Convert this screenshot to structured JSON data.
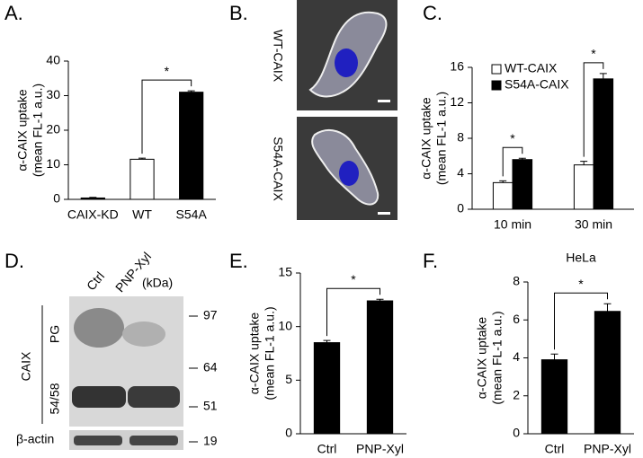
{
  "chart_data": [
    {
      "type": "bar",
      "label": "A.",
      "categories": [
        "CAIX-KD",
        "WT",
        "S54A"
      ],
      "values": [
        0.4,
        11.6,
        31
      ],
      "errors": [
        0.2,
        0.3,
        0.4
      ],
      "colors": [
        "#000000",
        "#ffffff",
        "#000000"
      ],
      "ylabel": [
        "α-CAIX uptake",
        "(mean FL-1 a.u.)"
      ],
      "ylim": [
        0,
        40
      ],
      "yticks": [
        0,
        10,
        20,
        30,
        40
      ],
      "annotations": [
        "*"
      ]
    },
    {
      "type": "grouped-bar",
      "label": "C.",
      "categories": [
        "10 min",
        "30 min"
      ],
      "series": [
        {
          "name": "WT-CAIX",
          "color": "#ffffff",
          "values": [
            3.0,
            5.0
          ],
          "errors": [
            0.2,
            0.4
          ]
        },
        {
          "name": "S54A-CAIX",
          "color": "#000000",
          "values": [
            5.6,
            14.7
          ],
          "errors": [
            0.15,
            0.6
          ]
        }
      ],
      "ylabel": [
        "α-CAIX uptake",
        "(mean FL-1 a.u.)"
      ],
      "ylim": [
        0,
        16
      ],
      "yticks": [
        0,
        4,
        8,
        12,
        16
      ],
      "legend": "upper left",
      "annotations": [
        "*",
        "*"
      ]
    },
    {
      "type": "bar",
      "label": "E.",
      "categories": [
        "Ctrl",
        "PNP-Xyl"
      ],
      "values": [
        8.5,
        12.4
      ],
      "errors": [
        0.2,
        0.15
      ],
      "colors": [
        "#000000",
        "#000000"
      ],
      "ylabel": [
        "α-CAIX uptake",
        "(mean FL-1 a.u.)"
      ],
      "ylim": [
        0,
        15
      ],
      "yticks": [
        0,
        5,
        10,
        15
      ],
      "annotations": [
        "*"
      ]
    },
    {
      "type": "bar",
      "label": "F.",
      "title": "HeLa",
      "categories": [
        "Ctrl",
        "PNP-Xyl"
      ],
      "values": [
        3.9,
        6.45
      ],
      "errors": [
        0.3,
        0.4
      ],
      "colors": [
        "#000000",
        "#000000"
      ],
      "ylabel": [
        "α-CAIX uptake",
        "(mean FL-1 a.u.)"
      ],
      "ylim": [
        0,
        8
      ],
      "yticks": [
        0,
        2,
        4,
        6,
        8
      ],
      "annotations": [
        "*"
      ]
    }
  ],
  "micrograph": {
    "label": "B.",
    "rows": [
      "WT-CAIX",
      "S54A-CAIX"
    ]
  },
  "blot": {
    "label": "D.",
    "lanes": [
      "Ctrl",
      "PNP-Xyl"
    ],
    "unit": "(kDa)",
    "markers": [
      97,
      64,
      51,
      19
    ],
    "protein": "CAIX",
    "forms": [
      "PG",
      "54/58"
    ],
    "loading_control": "β-actin"
  }
}
